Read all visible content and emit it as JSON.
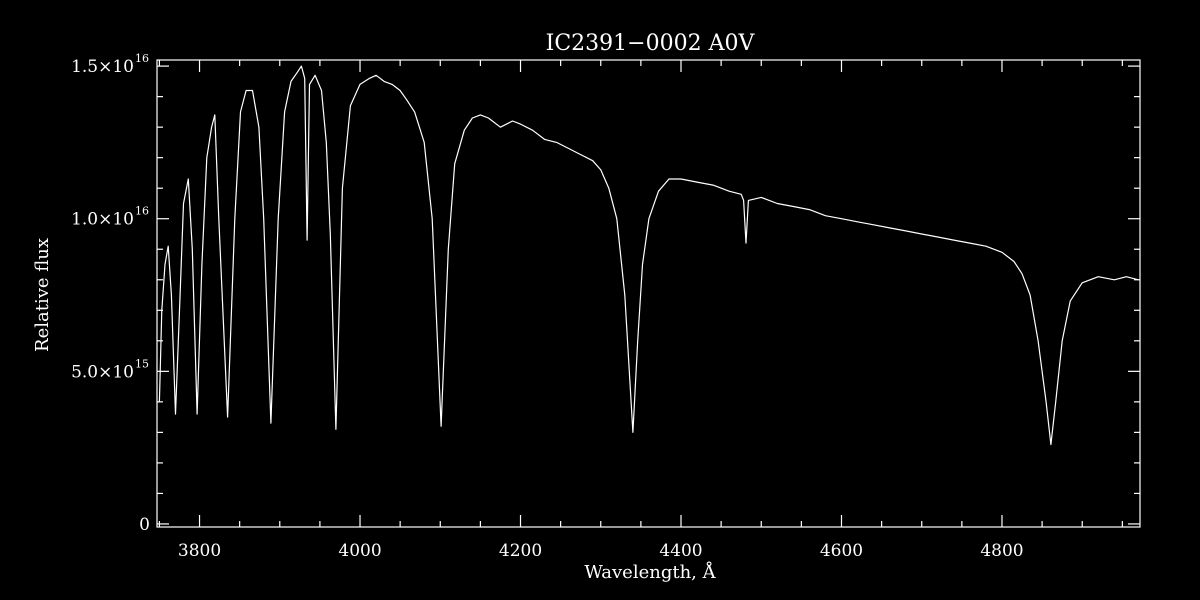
{
  "chart_data": {
    "type": "line",
    "title": "IC2391−0002  A0V",
    "xlabel": "Wavelength, Å",
    "ylabel": "Relative flux",
    "xlim": [
      3747,
      4972
    ],
    "ylim": [
      -100000000000000.0,
      1.52e+16
    ],
    "x_ticks": [
      {
        "value": 3800,
        "label": "3800"
      },
      {
        "value": 4000,
        "label": "4000"
      },
      {
        "value": 4200,
        "label": "4200"
      },
      {
        "value": 4400,
        "label": "4400"
      },
      {
        "value": 4600,
        "label": "4600"
      },
      {
        "value": 4800,
        "label": "4800"
      }
    ],
    "y_ticks": [
      {
        "value": 0,
        "label": "0",
        "exp": ""
      },
      {
        "value": 5000000000000000.0,
        "label": "5.0×10",
        "exp": "15"
      },
      {
        "value": 1e+16,
        "label": "1.0×10",
        "exp": "16"
      },
      {
        "value": 1.5e+16,
        "label": "1.5×10",
        "exp": "16"
      }
    ],
    "grid": false,
    "colors": {
      "background": "#000000",
      "foreground": "#ffffff"
    },
    "series": [
      {
        "points": [
          [
            3750,
            4000000000000000.0
          ],
          [
            3753,
            7000000000000000.0
          ],
          [
            3757,
            8500000000000000.0
          ],
          [
            3761,
            9100000000000000.0
          ],
          [
            3765,
            7500000000000000.0
          ],
          [
            3770,
            3600000000000000.0
          ],
          [
            3775,
            7000000000000000.0
          ],
          [
            3780,
            1.05e+16
          ],
          [
            3786,
            1.13e+16
          ],
          [
            3791,
            9000000000000000.0
          ],
          [
            3797,
            3600000000000000.0
          ],
          [
            3803,
            8500000000000000.0
          ],
          [
            3809,
            1.2e+16
          ],
          [
            3815,
            1.3e+16
          ],
          [
            3819,
            1.34e+16
          ],
          [
            3824,
            1e+16
          ],
          [
            3835,
            3500000000000000.0
          ],
          [
            3844,
            1e+16
          ],
          [
            3851,
            1.35e+16
          ],
          [
            3858,
            1.42e+16
          ],
          [
            3866,
            1.42e+16
          ],
          [
            3874,
            1.3e+16
          ],
          [
            3880,
            1e+16
          ],
          [
            3889,
            3300000000000000.0
          ],
          [
            3898,
            1e+16
          ],
          [
            3906,
            1.35e+16
          ],
          [
            3914,
            1.45e+16
          ],
          [
            3922,
            1.48e+16
          ],
          [
            3927,
            1.5e+16
          ],
          [
            3931,
            1.46e+16
          ],
          [
            3934,
            9300000000000000.0
          ],
          [
            3937,
            1.44e+16
          ],
          [
            3944,
            1.47e+16
          ],
          [
            3952,
            1.42e+16
          ],
          [
            3958,
            1.25e+16
          ],
          [
            3963,
            9500000000000000.0
          ],
          [
            3970,
            3100000000000000.0
          ],
          [
            3978,
            1.1e+16
          ],
          [
            3988,
            1.37e+16
          ],
          [
            4000,
            1.44e+16
          ],
          [
            4012,
            1.46e+16
          ],
          [
            4020,
            1.47e+16
          ],
          [
            4030,
            1.45e+16
          ],
          [
            4040,
            1.44e+16
          ],
          [
            4050,
            1.42e+16
          ],
          [
            4058,
            1.39e+16
          ],
          [
            4068,
            1.35e+16
          ],
          [
            4080,
            1.25e+16
          ],
          [
            4090,
            1e+16
          ],
          [
            4101,
            3200000000000000.0
          ],
          [
            4110,
            9000000000000000.0
          ],
          [
            4118,
            1.18e+16
          ],
          [
            4130,
            1.29e+16
          ],
          [
            4140,
            1.33e+16
          ],
          [
            4150,
            1.34e+16
          ],
          [
            4160,
            1.33e+16
          ],
          [
            4175,
            1.3e+16
          ],
          [
            4190,
            1.32e+16
          ],
          [
            4200,
            1.31e+16
          ],
          [
            4215,
            1.29e+16
          ],
          [
            4230,
            1.26e+16
          ],
          [
            4245,
            1.25e+16
          ],
          [
            4260,
            1.23e+16
          ],
          [
            4275,
            1.21e+16
          ],
          [
            4290,
            1.19e+16
          ],
          [
            4300,
            1.16e+16
          ],
          [
            4310,
            1.1e+16
          ],
          [
            4320,
            1e+16
          ],
          [
            4330,
            7500000000000000.0
          ],
          [
            4340,
            3000000000000000.0
          ],
          [
            4346,
            6000000000000000.0
          ],
          [
            4352,
            8500000000000000.0
          ],
          [
            4360,
            1e+16
          ],
          [
            4372,
            1.09e+16
          ],
          [
            4385,
            1.13e+16
          ],
          [
            4400,
            1.13e+16
          ],
          [
            4420,
            1.12e+16
          ],
          [
            4440,
            1.11e+16
          ],
          [
            4460,
            1.09e+16
          ],
          [
            4475,
            1.08e+16
          ],
          [
            4478,
            1.06e+16
          ],
          [
            4481,
            9200000000000000.0
          ],
          [
            4484,
            1.06e+16
          ],
          [
            4500,
            1.07e+16
          ],
          [
            4520,
            1.05e+16
          ],
          [
            4540,
            1.04e+16
          ],
          [
            4560,
            1.03e+16
          ],
          [
            4580,
            1.01e+16
          ],
          [
            4600,
            1e+16
          ],
          [
            4620,
            9900000000000000.0
          ],
          [
            4640,
            9800000000000000.0
          ],
          [
            4660,
            9700000000000000.0
          ],
          [
            4680,
            9600000000000000.0
          ],
          [
            4700,
            9500000000000000.0
          ],
          [
            4720,
            9400000000000000.0
          ],
          [
            4740,
            9300000000000000.0
          ],
          [
            4760,
            9200000000000000.0
          ],
          [
            4780,
            9100000000000000.0
          ],
          [
            4800,
            8900000000000000.0
          ],
          [
            4815,
            8600000000000000.0
          ],
          [
            4825,
            8200000000000000.0
          ],
          [
            4835,
            7500000000000000.0
          ],
          [
            4845,
            6000000000000000.0
          ],
          [
            4855,
            4000000000000000.0
          ],
          [
            4861,
            2600000000000000.0
          ],
          [
            4867,
            4000000000000000.0
          ],
          [
            4875,
            6000000000000000.0
          ],
          [
            4885,
            7300000000000000.0
          ],
          [
            4900,
            7900000000000000.0
          ],
          [
            4920,
            8100000000000000.0
          ],
          [
            4940,
            8000000000000000.0
          ],
          [
            4955,
            8100000000000000.0
          ],
          [
            4970,
            8000000000000000.0
          ]
        ]
      }
    ]
  }
}
